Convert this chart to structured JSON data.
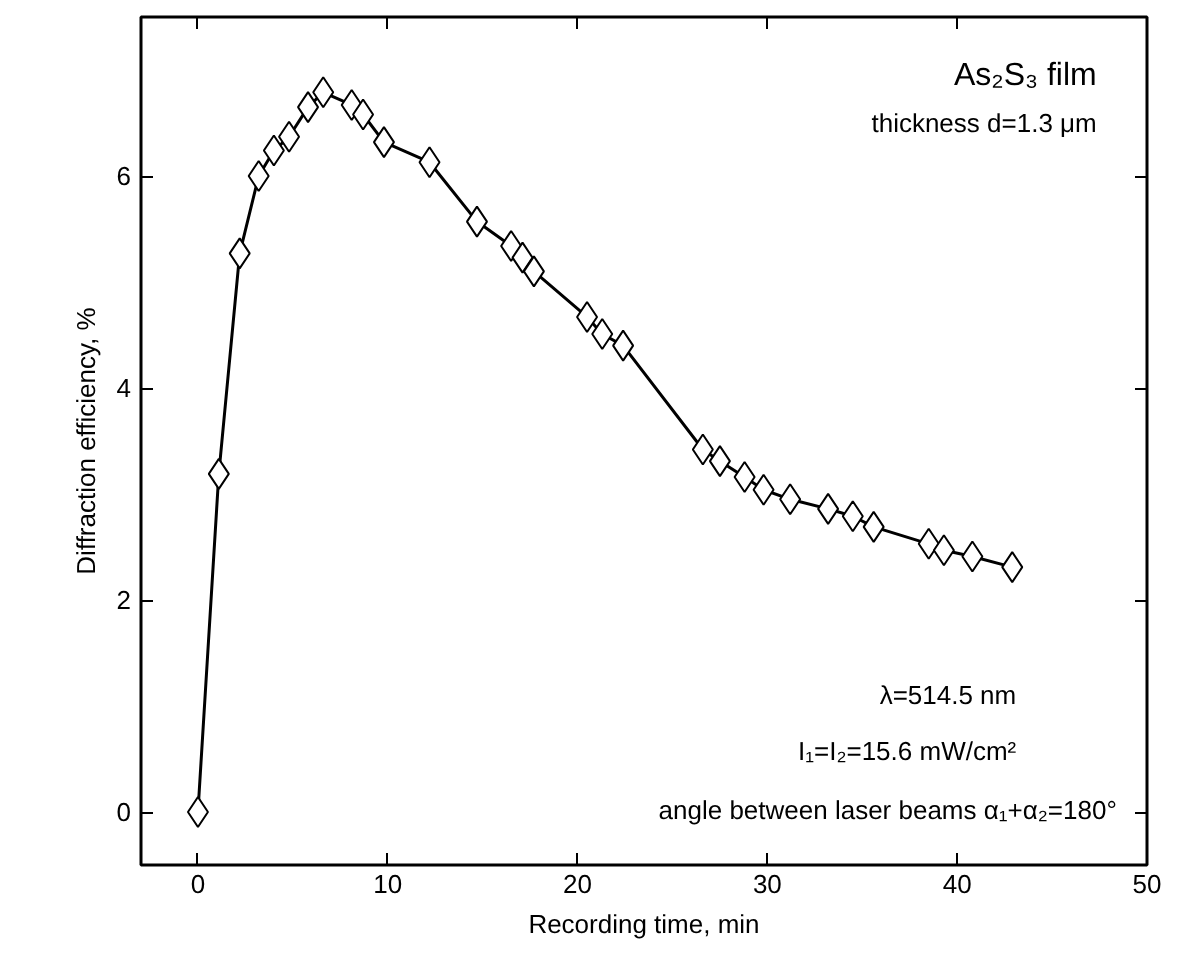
{
  "chart_data": {
    "type": "line",
    "xlabel": "Recording time, min",
    "ylabel": "Diffraction efficiency, %",
    "annotations": [
      "As₂S₃ film",
      "thickness d=1.3 μm",
      "λ=514.5 nm",
      "I₁=I₂=15.6 mW/cm²",
      "angle between laser beams α₁+α₂=180°"
    ],
    "x": [
      0,
      1.1,
      2.2,
      3.2,
      4.0,
      4.8,
      5.8,
      6.6,
      8.1,
      8.7,
      9.8,
      12.2,
      14.7,
      16.5,
      17.1,
      17.7,
      20.5,
      21.3,
      22.4,
      26.6,
      27.5,
      28.8,
      29.8,
      31.2,
      33.2,
      34.5,
      35.6,
      38.5,
      39.3,
      40.8,
      42.9
    ],
    "series": [
      {
        "color": "#000000",
        "values": [
          0,
          3.19,
          5.27,
          6.0,
          6.24,
          6.37,
          6.65,
          6.79,
          6.67,
          6.58,
          6.32,
          6.13,
          5.57,
          5.34,
          5.23,
          5.1,
          4.67,
          4.51,
          4.4,
          3.42,
          3.31,
          3.16,
          3.04,
          2.95,
          2.86,
          2.79,
          2.69,
          2.53,
          2.47,
          2.41,
          2.31
        ]
      }
    ],
    "xlim": [
      -3,
      50
    ],
    "ylim": [
      -0.5,
      7.5
    ],
    "xticks": [
      0,
      10,
      20,
      30,
      40,
      50
    ],
    "yticks": [
      0,
      2,
      4,
      6
    ],
    "marker": "diamond",
    "line_style": "solid",
    "grid": false
  }
}
